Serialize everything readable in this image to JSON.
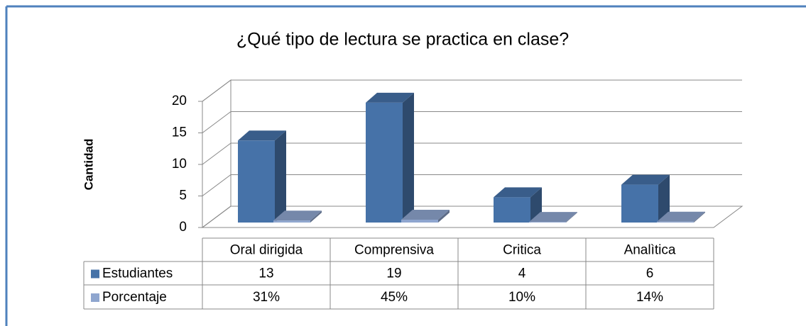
{
  "chart_data": {
    "type": "bar3d",
    "title": "¿Qué tipo de lectura se practica en clase?",
    "y_label": "Cantidad",
    "categories": [
      "Oral dirigida",
      "Comprensiva",
      "Critica",
      "Analìtica"
    ],
    "series": [
      {
        "name": "Estudiantes",
        "color": "#4672a8",
        "values": [
          13,
          19,
          4,
          6
        ]
      },
      {
        "name": "Porcentaje",
        "color": "#8fa6cf",
        "values": [
          0.31,
          0.45,
          0.1,
          0.14
        ],
        "value_labels": [
          "31%",
          "45%",
          "10%",
          "14%"
        ]
      }
    ],
    "ylim": [
      0,
      20
    ],
    "yticks": [
      0,
      5,
      10,
      15,
      20
    ],
    "grid": true
  }
}
